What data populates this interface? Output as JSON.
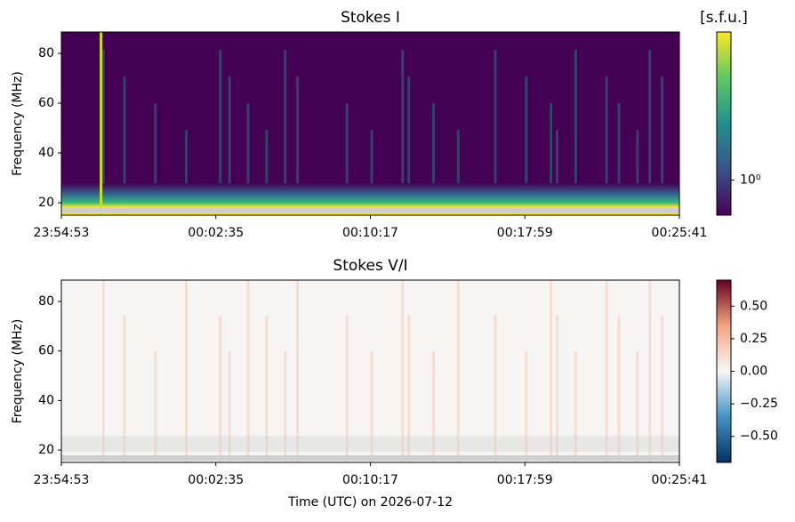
{
  "chart_data": [
    {
      "type": "spectrogram",
      "title": "Stokes I",
      "ylabel": "Frequency (MHz)",
      "xlim": [
        "23:54:53",
        "00:25:41"
      ],
      "xticks": [
        "23:54:53",
        "00:02:35",
        "00:10:17",
        "00:17:59",
        "00:25:41"
      ],
      "ylim": [
        15,
        88.6
      ],
      "yticks": [
        20,
        40,
        60,
        80
      ],
      "colorbar": {
        "label": "[s.f.u.]",
        "scale": "log",
        "lim": [
          0.7,
          4.5
        ],
        "ticks": [
          {
            "value": 1,
            "label": "10⁰"
          }
        ],
        "colormap": "viridis"
      }
    },
    {
      "type": "spectrogram",
      "title": "Stokes V/I",
      "ylabel": "Frequency (MHz)",
      "xlabel": "Time (UTC) on 2026-07-12",
      "xlim": [
        "23:54:53",
        "00:25:41"
      ],
      "xticks": [
        "23:54:53",
        "00:02:35",
        "00:10:17",
        "00:17:59",
        "00:25:41"
      ],
      "ylim": [
        15,
        88.6
      ],
      "yticks": [
        20,
        40,
        60,
        80
      ],
      "colorbar": {
        "scale": "linear",
        "lim": [
          -0.7,
          0.7
        ],
        "ticks": [
          {
            "value": -0.5,
            "label": "−0.50"
          },
          {
            "value": -0.25,
            "label": "−0.25"
          },
          {
            "value": 0,
            "label": "0.00"
          },
          {
            "value": 0.25,
            "label": "0.25"
          },
          {
            "value": 0.5,
            "label": "0.50"
          }
        ],
        "colormap": "RdBu_r"
      }
    }
  ]
}
